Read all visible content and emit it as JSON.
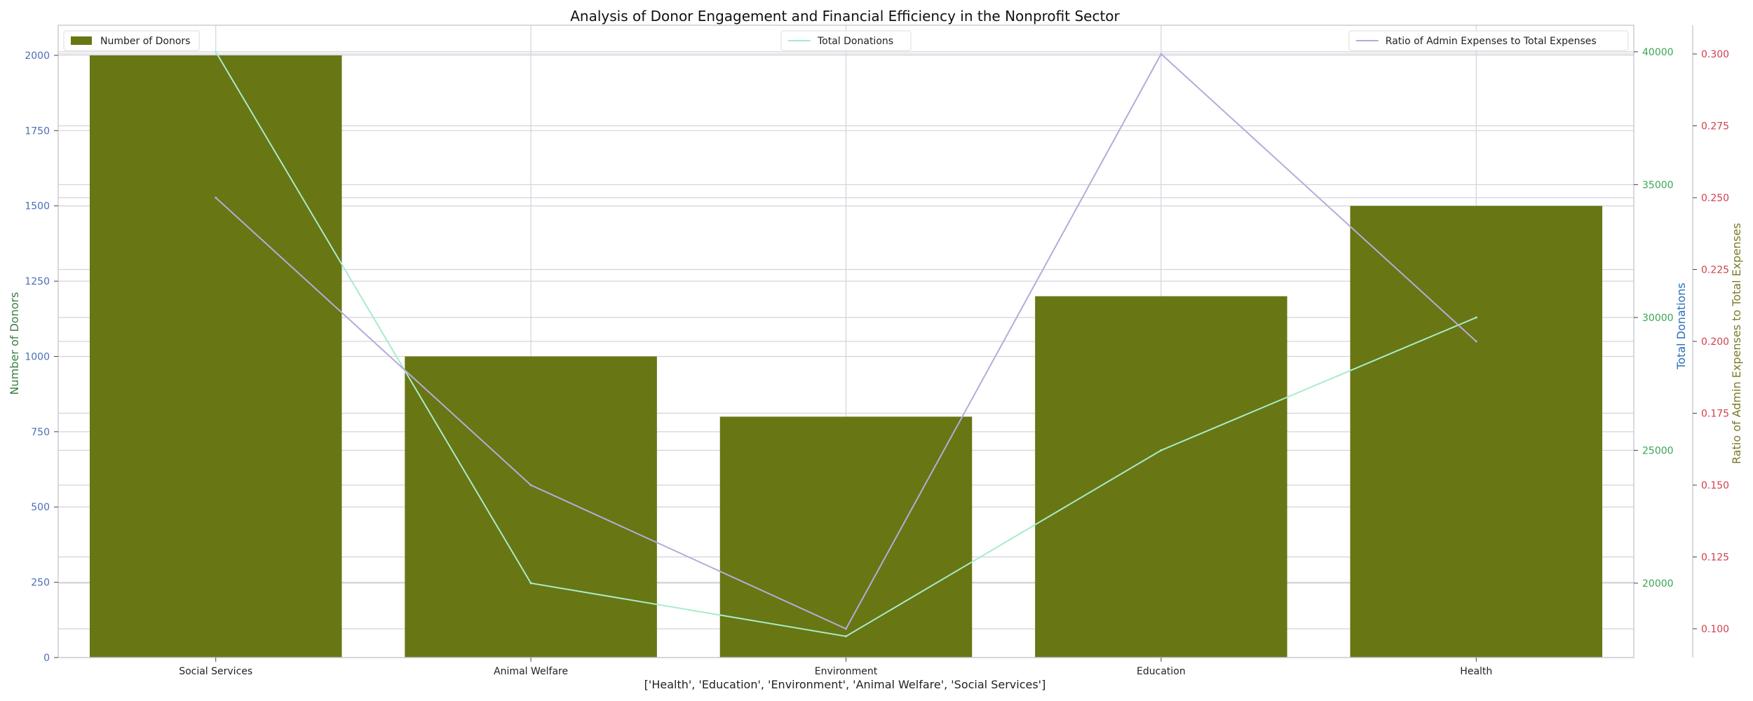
{
  "chart_data": {
    "type": "bar",
    "title": "Analysis of Donor Engagement and Financial Efficiency in the Nonprofit Sector",
    "xlabel": "['Health', 'Education', 'Environment', 'Animal Welfare', 'Social Services']",
    "categories": [
      "Social Services",
      "Animal Welfare",
      "Environment",
      "Education",
      "Health"
    ],
    "grid": true,
    "axes": {
      "left": {
        "label": "Number of Donors",
        "label_color": "#3a7d44",
        "tick_color": "#4a6fb5",
        "ylim": [
          0,
          2100
        ],
        "ticks": [
          0,
          250,
          500,
          750,
          1000,
          1250,
          1500,
          1750,
          2000
        ]
      },
      "right1": {
        "label": "Total Donations",
        "label_color": "#2a6db5",
        "tick_color": "#3aa655",
        "ylim": [
          17200,
          41000
        ],
        "ticks": [
          20000,
          25000,
          30000,
          35000,
          40000
        ]
      },
      "right2": {
        "label": "Ratio of Admin Expenses to Total Expenses",
        "label_color": "#7a7a2a",
        "tick_color": "#d04050",
        "ylim": [
          0.09,
          0.31
        ],
        "ticks": [
          0.1,
          0.125,
          0.15,
          0.175,
          0.2,
          0.225,
          0.25,
          0.275,
          0.3
        ],
        "tick_labels": [
          "0.100",
          "0.125",
          "0.150",
          "0.175",
          "0.200",
          "0.225",
          "0.250",
          "0.275",
          "0.300"
        ]
      }
    },
    "series": [
      {
        "name": "Number of Donors",
        "kind": "bar",
        "axis": "left",
        "color": "#687614",
        "values": [
          2000,
          1000,
          800,
          1200,
          1500
        ],
        "legend": "top-left"
      },
      {
        "name": "Total Donations",
        "kind": "line",
        "axis": "right1",
        "color": "#a8ecc8",
        "values": [
          40000,
          20000,
          18000,
          25000,
          30000
        ],
        "legend": "top-center"
      },
      {
        "name": "Ratio of Admin Expenses to Total Expenses",
        "kind": "line",
        "axis": "right2",
        "color": "#b8aad8",
        "values": [
          0.25,
          0.15,
          0.1,
          0.3,
          0.2
        ],
        "legend": "top-right"
      }
    ]
  }
}
